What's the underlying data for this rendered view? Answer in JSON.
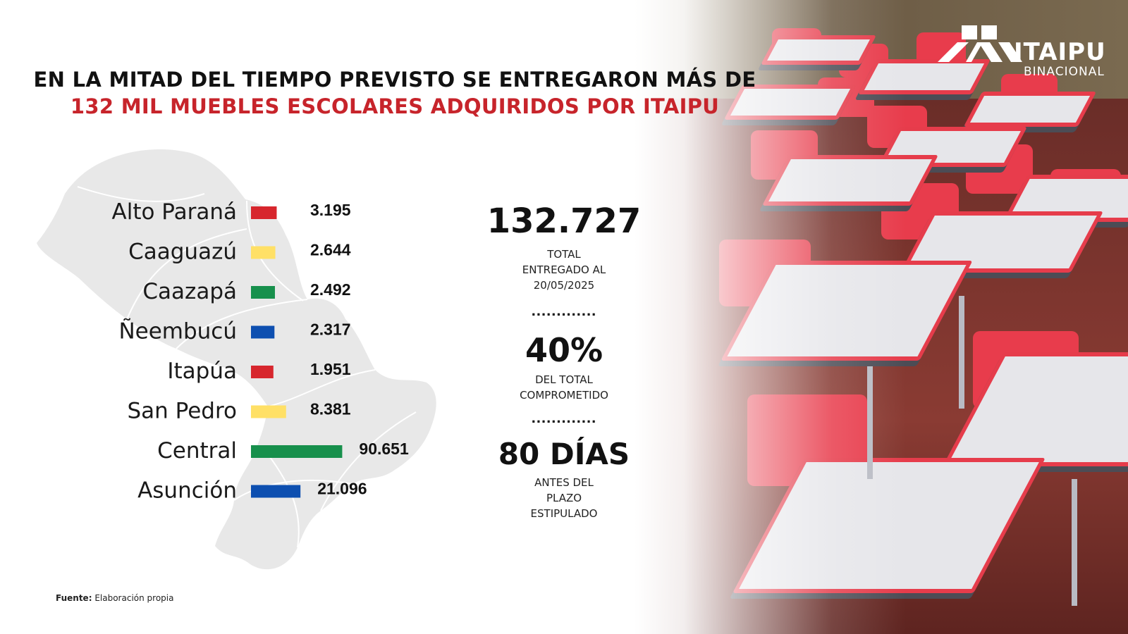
{
  "title": {
    "line1": "EN LA MITAD DEL TIEMPO PREVISTO SE ENTREGARON MÁS DE",
    "line2": "132 MIL MUEBLES ESCOLARES ADQUIRIDOS POR ITAIPU"
  },
  "logo": {
    "name": "ITAIPU",
    "sub": "BINACIONAL",
    "color": "#ffffff"
  },
  "chart_data": {
    "type": "bar",
    "orientation": "horizontal",
    "categories": [
      "Alto Paraná",
      "Caaguazú",
      "Caazapá",
      "Ñeembucú",
      "Itapúa",
      "San Pedro",
      "Central",
      "Asunción"
    ],
    "values": [
      3195,
      2644,
      2492,
      2317,
      1951,
      8381,
      90651,
      21096
    ],
    "value_labels": [
      "3.195",
      "2.644",
      "2.492",
      "2.317",
      "1.951",
      "8.381",
      "90.651",
      "21.096"
    ],
    "colors": [
      "#d7262d",
      "#ffe066",
      "#17904c",
      "#0d4fb0",
      "#d7262d",
      "#ffe066",
      "#17904c",
      "#0d4fb0"
    ]
  },
  "stats": [
    {
      "value": "132.727",
      "lines": [
        "TOTAL",
        "ENTREGADO AL",
        "20/05/2025"
      ]
    },
    {
      "value": "40%",
      "lines": [
        "DEL TOTAL",
        "COMPROMETIDO"
      ]
    },
    {
      "value": "80 DÍAS",
      "lines": [
        "ANTES DEL",
        "PLAZO",
        "ESTIPULADO"
      ]
    }
  ],
  "separator": ".............",
  "source": {
    "label": "Fuente:",
    "text": "Elaboración propia"
  },
  "colors": {
    "accent_red": "#c7242b",
    "map_fill": "#e8e8e8"
  }
}
